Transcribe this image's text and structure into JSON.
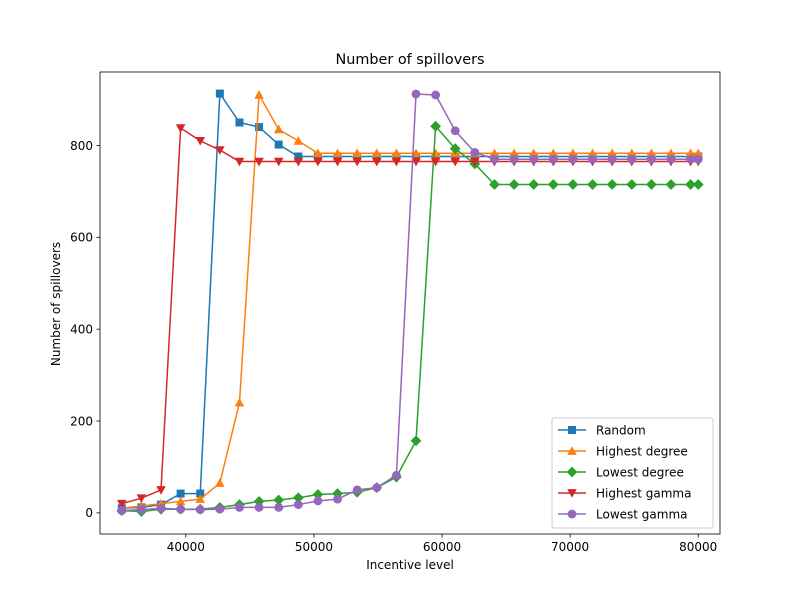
{
  "chart_data": {
    "type": "line",
    "title": "Number of spillovers",
    "xlabel": "Incentive level",
    "ylabel": "Number of spillovers",
    "xlim": [
      33300,
      81700
    ],
    "ylim": [
      -46,
      960
    ],
    "xticks": [
      40000,
      50000,
      60000,
      70000,
      80000
    ],
    "yticks": [
      0,
      200,
      400,
      600,
      800
    ],
    "grid": false,
    "legend_position": "lower-right",
    "x": [
      35000,
      36531,
      38063,
      39594,
      41125,
      42656,
      44188,
      45719,
      47250,
      48781,
      50313,
      51844,
      53375,
      54906,
      56438,
      57969,
      59500,
      61031,
      62563,
      64094,
      65625,
      67156,
      68688,
      70219,
      71750,
      73281,
      74813,
      76344,
      77875,
      79406,
      80000
    ],
    "series": [
      {
        "name": "Random",
        "color": "#1f77b4",
        "marker": "square",
        "values": [
          10,
          12,
          18,
          42,
          42,
          913,
          850,
          840,
          802,
          776,
          776,
          776,
          776,
          776,
          776,
          776,
          776,
          776,
          776,
          776,
          776,
          776,
          776,
          776,
          776,
          776,
          776,
          776,
          776,
          776,
          776
        ]
      },
      {
        "name": "Highest degree",
        "color": "#ff7f0e",
        "marker": "triangle-up",
        "values": [
          10,
          15,
          20,
          25,
          30,
          65,
          240,
          910,
          835,
          810,
          783,
          783,
          783,
          783,
          783,
          783,
          783,
          783,
          783,
          783,
          783,
          783,
          783,
          783,
          783,
          783,
          783,
          783,
          783,
          783,
          783
        ]
      },
      {
        "name": "Lowest degree",
        "color": "#2ca02c",
        "marker": "diamond",
        "values": [
          5,
          3,
          8,
          8,
          8,
          12,
          18,
          25,
          28,
          33,
          40,
          42,
          45,
          55,
          78,
          157,
          842,
          793,
          760,
          715,
          715,
          715,
          715,
          715,
          715,
          715,
          715,
          715,
          715,
          715,
          715
        ]
      },
      {
        "name": "Highest gamma",
        "color": "#d62728",
        "marker": "triangle-down",
        "values": [
          20,
          32,
          50,
          838,
          810,
          790,
          765,
          765,
          765,
          765,
          765,
          765,
          765,
          765,
          765,
          765,
          765,
          765,
          765,
          765,
          765,
          765,
          765,
          765,
          765,
          765,
          765,
          765,
          765,
          765,
          765
        ]
      },
      {
        "name": "Lowest gamma",
        "color": "#9467bd",
        "marker": "circle",
        "values": [
          5,
          7,
          10,
          8,
          7,
          8,
          12,
          12,
          12,
          18,
          26,
          30,
          50,
          55,
          82,
          912,
          910,
          832,
          785,
          770,
          770,
          770,
          770,
          770,
          770,
          770,
          770,
          770,
          770,
          770,
          770
        ]
      }
    ]
  }
}
